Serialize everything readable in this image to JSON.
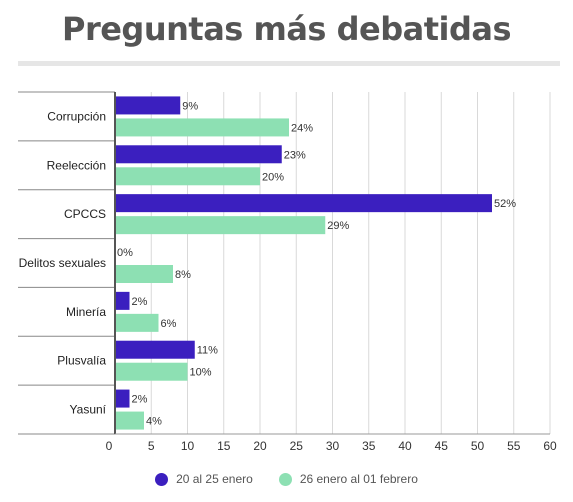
{
  "title": "Preguntas más debatidas",
  "colors": {
    "series1": "#3b1fbf",
    "series2": "#8de0b3",
    "grid": "#d9d9d9",
    "axis": "#555555"
  },
  "chart_data": {
    "type": "bar",
    "orientation": "horizontal",
    "categories": [
      "Corrupción",
      "Reelección",
      "CPCCS",
      "Delitos sexuales",
      "Minería",
      "Plusvalía",
      "Yasuní"
    ],
    "series": [
      {
        "name": "20 al 25 enero",
        "values": [
          9,
          23,
          52,
          0,
          2,
          11,
          2
        ],
        "labels": [
          "9%",
          "23%",
          "52%",
          "0%",
          "2%",
          "11%",
          "2%"
        ]
      },
      {
        "name": "26 enero al 01 febrero",
        "values": [
          24,
          20,
          29,
          8,
          6,
          10,
          4
        ],
        "labels": [
          "24%",
          "20%",
          "29%",
          "8%",
          "6%",
          "10%",
          "4%"
        ]
      }
    ],
    "xlim": [
      0,
      60
    ],
    "xticks": [
      0,
      5,
      10,
      15,
      20,
      25,
      30,
      35,
      40,
      45,
      50,
      55,
      60
    ],
    "grid": true,
    "legend_position": "bottom"
  }
}
